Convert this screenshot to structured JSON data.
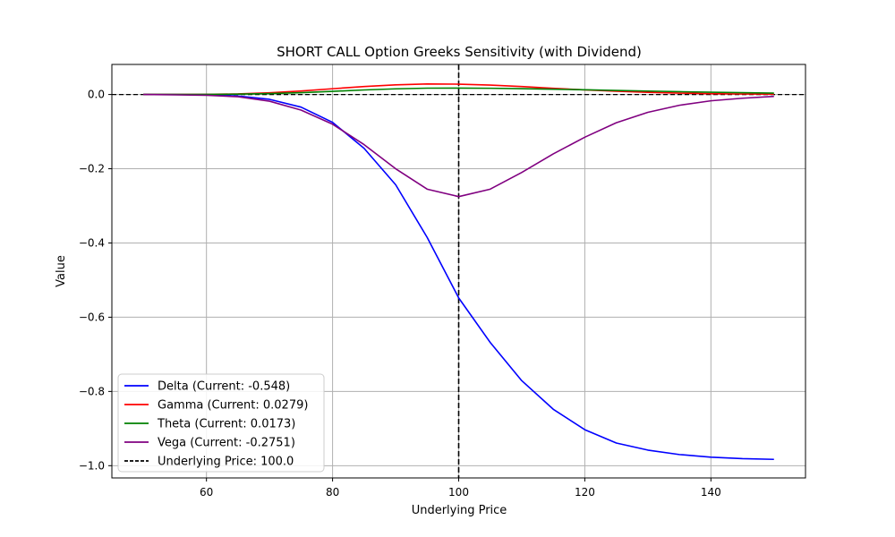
{
  "chart_data": {
    "type": "line",
    "title": "SHORT CALL Option Greeks Sensitivity (with Dividend)",
    "xlabel": "Underlying Price",
    "ylabel": "Value",
    "xlim": [
      45,
      155
    ],
    "ylim": [
      -1.033,
      0.081
    ],
    "xticks": [
      60,
      80,
      100,
      120,
      140
    ],
    "xtick_labels": [
      "60",
      "80",
      "100",
      "120",
      "140"
    ],
    "yticks": [
      0.0,
      -0.2,
      -0.4,
      -0.6,
      -0.8,
      -1.0
    ],
    "ytick_labels": [
      "0.0",
      "−0.2",
      "−0.4",
      "−0.6",
      "−0.8",
      "−1.0"
    ],
    "grid": true,
    "legend_position": "lower-left",
    "x": [
      50,
      55,
      60,
      65,
      70,
      75,
      80,
      85,
      90,
      95,
      100,
      105,
      110,
      115,
      120,
      125,
      130,
      135,
      140,
      145,
      150
    ],
    "series": [
      {
        "name": "Delta (Current: -0.548)",
        "color": "#0000ff",
        "style": "solid",
        "values": [
          0.0,
          0.0,
          -0.001,
          -0.004,
          -0.013,
          -0.034,
          -0.075,
          -0.145,
          -0.243,
          -0.385,
          -0.548,
          -0.668,
          -0.771,
          -0.848,
          -0.903,
          -0.939,
          -0.958,
          -0.97,
          -0.977,
          -0.981,
          -0.983
        ]
      },
      {
        "name": "Gamma (Current: 0.0279)",
        "color": "#ff0000",
        "style": "solid",
        "values": [
          0.0,
          0.0001,
          0.0004,
          0.0015,
          0.0046,
          0.0094,
          0.0156,
          0.0215,
          0.026,
          0.0285,
          0.0279,
          0.0254,
          0.0214,
          0.0167,
          0.0124,
          0.0087,
          0.0058,
          0.0037,
          0.0023,
          0.0014,
          0.0008
        ]
      },
      {
        "name": "Theta (Current: 0.0173)",
        "color": "#008000",
        "style": "solid",
        "values": [
          0.0,
          0.0001,
          0.0003,
          0.001,
          0.0025,
          0.005,
          0.0085,
          0.0123,
          0.0153,
          0.0171,
          0.0173,
          0.0168,
          0.0157,
          0.0143,
          0.0127,
          0.011,
          0.0093,
          0.0076,
          0.0061,
          0.0048,
          0.0037
        ]
      },
      {
        "name": "Vega (Current: -0.2751)",
        "color": "#800080",
        "style": "solid",
        "values": [
          0.0,
          -0.001,
          -0.002,
          -0.006,
          -0.018,
          -0.042,
          -0.08,
          -0.135,
          -0.2,
          -0.255,
          -0.2751,
          -0.255,
          -0.21,
          -0.16,
          -0.115,
          -0.076,
          -0.048,
          -0.029,
          -0.017,
          -0.01,
          -0.005
        ]
      }
    ],
    "reference_lines": {
      "vertical": {
        "x": 100,
        "name": "Underlying Price: 100.0",
        "color": "#000000",
        "style": "dashed"
      },
      "horizontal": {
        "y": 0,
        "color": "#000000",
        "style": "dashed"
      }
    }
  }
}
